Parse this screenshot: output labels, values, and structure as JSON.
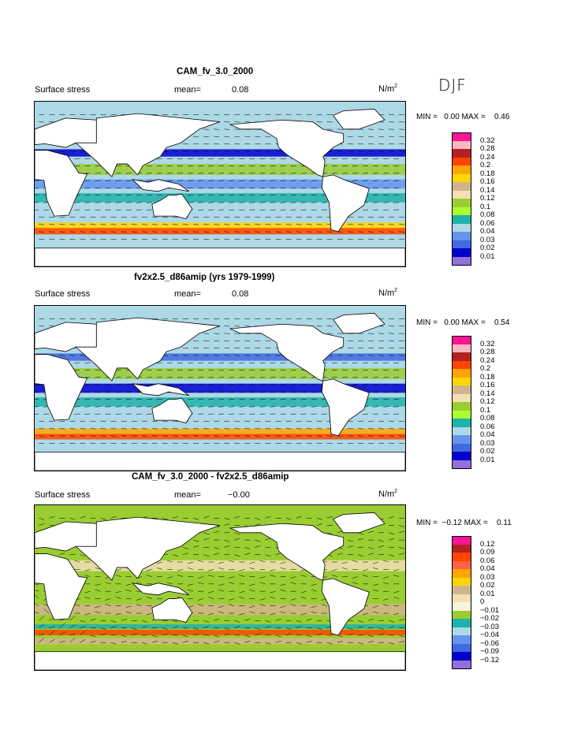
{
  "season": "DJF",
  "panels": [
    {
      "title": "CAM_fv_3.0_2000",
      "field": "Surface stress",
      "mean_label": "mean=",
      "mean_value": "0.08",
      "units": "N/m",
      "units_exp": "2",
      "min_label": "MIN =",
      "min_value": "0.00",
      "max_label": "MAX =",
      "max_value": "0.46",
      "legend": [
        "0.32",
        "0.28",
        "0.24",
        "0.2",
        "0.18",
        "0.16",
        "0.14",
        "0.12",
        "0.1",
        "0.08",
        "0.06",
        "0.04",
        "0.03",
        "0.02",
        "0.01"
      ],
      "colors": [
        "#ff1493",
        "#ffb6c1",
        "#b22222",
        "#ff4500",
        "#ffa500",
        "#ffd700",
        "#d2b48c",
        "#f5deb3",
        "#9acd32",
        "#adff2f",
        "#20b2aa",
        "#add8e6",
        "#6495ed",
        "#4169e1",
        "#0000cd",
        "#9370db"
      ]
    },
    {
      "title": "fv2x2.5_d86amip (yrs 1979-1999)",
      "field": "Surface stress",
      "mean_label": "mean=",
      "mean_value": "0.08",
      "units": "N/m",
      "units_exp": "2",
      "min_label": "MIN =",
      "min_value": "0.00",
      "max_label": "MAX =",
      "max_value": "0.54",
      "legend": [
        "0.32",
        "0.28",
        "0.24",
        "0.2",
        "0.18",
        "0.16",
        "0.14",
        "0.12",
        "0.1",
        "0.08",
        "0.06",
        "0.04",
        "0.03",
        "0.02",
        "0.01"
      ],
      "colors": [
        "#ff1493",
        "#ffb6c1",
        "#b22222",
        "#ff4500",
        "#ffa500",
        "#ffd700",
        "#d2b48c",
        "#f5deb3",
        "#9acd32",
        "#adff2f",
        "#20b2aa",
        "#add8e6",
        "#6495ed",
        "#4169e1",
        "#0000cd",
        "#9370db"
      ]
    },
    {
      "title": "CAM_fv_3.0_2000 - fv2x2.5_d86amip",
      "field": "Surface stress",
      "mean_label": "mean=",
      "mean_value": "−0.00",
      "units": "N/m",
      "units_exp": "2",
      "min_label": "MIN =",
      "min_value": "−0.12",
      "max_label": "MAX =",
      "max_value": "0.11",
      "legend": [
        "0.12",
        "0.09",
        "0.06",
        "0.04",
        "0.03",
        "0.02",
        "0.01",
        "0",
        "−0.01",
        "−0.02",
        "−0.03",
        "−0.04",
        "−0.06",
        "−0.09",
        "−0.12"
      ],
      "colors": [
        "#ff1493",
        "#b22222",
        "#ff4500",
        "#ff6347",
        "#ffa500",
        "#ffd700",
        "#d2b48c",
        "#f5deb3",
        "#f5f5dc",
        "#9acd32",
        "#20b2aa",
        "#add8e6",
        "#6495ed",
        "#4169e1",
        "#0000cd",
        "#9370db"
      ]
    }
  ]
}
